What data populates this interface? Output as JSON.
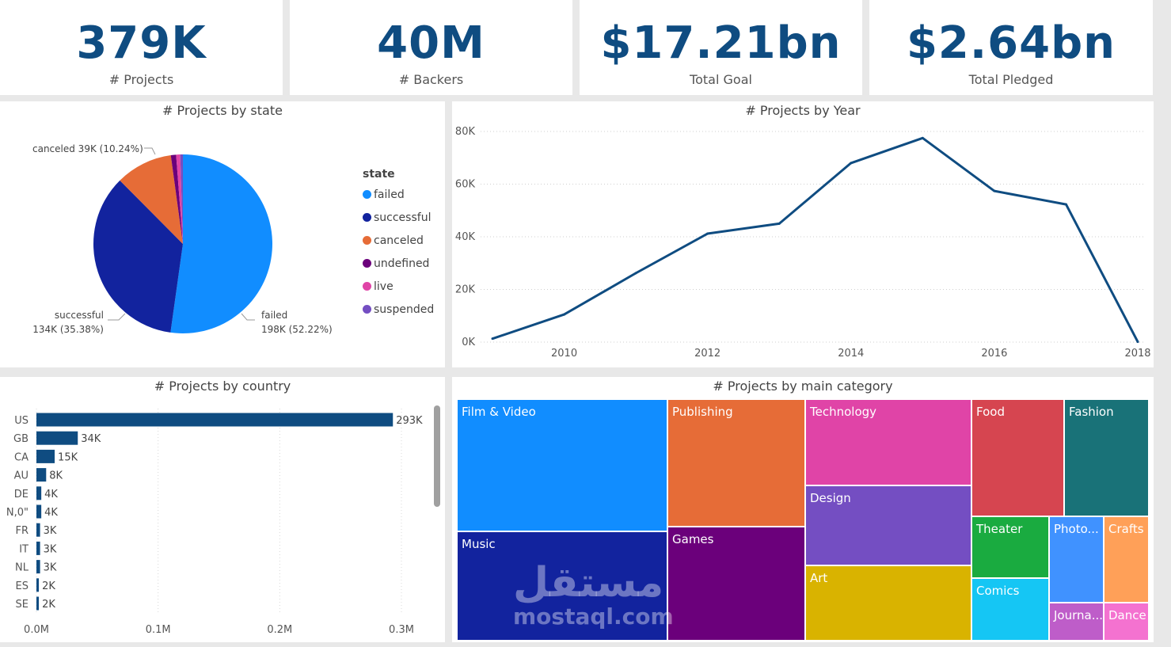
{
  "kpis": [
    {
      "value": "379K",
      "label": "# Projects"
    },
    {
      "value": "40M",
      "label": "# Backers"
    },
    {
      "value": "$17.21bn",
      "label": "Total Goal"
    },
    {
      "value": "$2.64bn",
      "label": "Total Pledged"
    }
  ],
  "colors": {
    "accent": "#0f4c81",
    "failed": "#118dff",
    "successful": "#12239e",
    "canceled": "#e66c37",
    "undefined": "#6b007b",
    "live": "#e044a7",
    "suspended": "#744ec2"
  },
  "pie": {
    "title": "# Projects by state",
    "legend_title": "state",
    "labels": {
      "canceled": "canceled 39K (10.24%)",
      "successful_name": "successful",
      "successful_value": "134K (35.38%)",
      "failed_name": "failed",
      "failed_value": "198K (52.22%)"
    }
  },
  "line": {
    "title": "# Projects by Year"
  },
  "bar": {
    "title": "# Projects by country"
  },
  "treemap": {
    "title": "# Projects by main category"
  },
  "watermark": {
    "arabic": "مستقل",
    "latin": "mostaql.com"
  },
  "chart_data": [
    {
      "type": "pie",
      "title": "# Projects by state",
      "legend": [
        "failed",
        "successful",
        "canceled",
        "undefined",
        "live",
        "suspended"
      ],
      "legend_title": "state",
      "legend_placement": "right",
      "slices": [
        {
          "name": "failed",
          "value": 198,
          "percent": 52.22,
          "color": "#118dff"
        },
        {
          "name": "successful",
          "value": 134,
          "percent": 35.38,
          "color": "#12239e"
        },
        {
          "name": "canceled",
          "value": 39,
          "percent": 10.24,
          "color": "#e66c37"
        },
        {
          "name": "undefined",
          "value": 3.6,
          "percent": 0.94,
          "color": "#6b007b"
        },
        {
          "name": "live",
          "value": 2.8,
          "percent": 0.74,
          "color": "#e044a7"
        },
        {
          "name": "suspended",
          "value": 1.8,
          "percent": 0.48,
          "color": "#744ec2"
        }
      ]
    },
    {
      "type": "line",
      "title": "# Projects by Year",
      "x": [
        2009,
        2010,
        2011,
        2012,
        2013,
        2014,
        2015,
        2016,
        2017,
        2018
      ],
      "series": [
        {
          "values": [
            1300,
            10500,
            26200,
            41200,
            45000,
            68000,
            77500,
            57400,
            52300,
            130
          ]
        }
      ],
      "xticks": [
        2010,
        2012,
        2014,
        2016,
        2018
      ],
      "yticks": [
        0,
        20000,
        40000,
        60000,
        80000
      ],
      "ytick_labels": [
        "0K",
        "20K",
        "40K",
        "60K",
        "80K"
      ],
      "ylim": [
        0,
        80000
      ],
      "xlim": [
        2009,
        2018
      ],
      "grid": true,
      "color": "#0f4c81"
    },
    {
      "type": "bar",
      "orientation": "horizontal",
      "title": "# Projects by country",
      "categories": [
        "US",
        "GB",
        "CA",
        "AU",
        "DE",
        "N,0\"",
        "FR",
        "IT",
        "NL",
        "ES",
        "SE"
      ],
      "values": [
        293000,
        34000,
        15000,
        8000,
        4000,
        4000,
        3000,
        3000,
        3000,
        2000,
        2000
      ],
      "value_labels": [
        "293K",
        "34K",
        "15K",
        "8K",
        "4K",
        "4K",
        "3K",
        "3K",
        "3K",
        "2K",
        "2K"
      ],
      "xticks": [
        0,
        100000,
        200000,
        300000
      ],
      "xtick_labels": [
        "0.0M",
        "0.1M",
        "0.2M",
        "0.3M"
      ],
      "xlim": [
        0,
        300000
      ],
      "color": "#0f4c81"
    },
    {
      "type": "treemap",
      "title": "# Projects by main category",
      "items": [
        {
          "name": "Film & Video",
          "color": "#118dff"
        },
        {
          "name": "Music",
          "color": "#12239e"
        },
        {
          "name": "Publishing",
          "color": "#e66c37"
        },
        {
          "name": "Games",
          "color": "#6b007b"
        },
        {
          "name": "Technology",
          "color": "#e044a7"
        },
        {
          "name": "Design",
          "color": "#744ec2"
        },
        {
          "name": "Art",
          "color": "#d9b300"
        },
        {
          "name": "Food",
          "color": "#d64550"
        },
        {
          "name": "Fashion",
          "color": "#197278"
        },
        {
          "name": "Theater",
          "color": "#1aab40"
        },
        {
          "name": "Comics",
          "color": "#15c6f4"
        },
        {
          "name": "Photo...",
          "color": "#4092ff"
        },
        {
          "name": "Crafts",
          "color": "#ffa058"
        },
        {
          "name": "Journa...",
          "color": "#be5dc9"
        },
        {
          "name": "Dance",
          "color": "#f472d0"
        }
      ]
    }
  ]
}
